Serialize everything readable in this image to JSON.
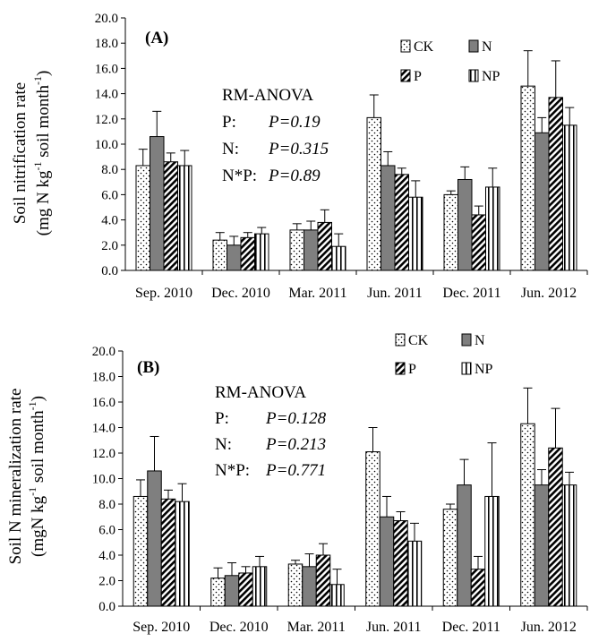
{
  "chart_data": [
    {
      "type": "bar",
      "panel_label": "(A)",
      "ylabel_line1": "Soil nitrification rate",
      "ylabel_line2": [
        "(mg N kg",
        "-1",
        " soil month",
        "-1",
        ")"
      ],
      "yticks": [
        "0.0",
        "2.0",
        "4.0",
        "6.0",
        "8.0",
        "10.0",
        "12.0",
        "14.0",
        "16.0",
        "18.0",
        "20.0"
      ],
      "ylim": [
        0,
        20
      ],
      "categories": [
        "Sep. 2010",
        "Dec. 2010",
        "Mar. 2011",
        "Jun. 2011",
        "Dec. 2011",
        "Jun. 2012"
      ],
      "series": [
        {
          "name": "CK",
          "pattern": "dots",
          "values": [
            8.3,
            2.4,
            3.2,
            12.1,
            6.0,
            14.6
          ],
          "errors": [
            1.3,
            0.6,
            0.5,
            1.8,
            0.3,
            2.8
          ]
        },
        {
          "name": "N",
          "pattern": "solid",
          "values": [
            10.6,
            2.0,
            3.2,
            8.3,
            7.2,
            10.9
          ],
          "errors": [
            2.0,
            0.7,
            0.7,
            1.1,
            1.0,
            1.2
          ]
        },
        {
          "name": "P",
          "pattern": "hatch",
          "values": [
            8.6,
            2.6,
            3.8,
            7.6,
            4.4,
            13.7
          ],
          "errors": [
            0.7,
            0.4,
            1.0,
            0.5,
            0.7,
            2.9
          ]
        },
        {
          "name": "NP",
          "pattern": "vlines",
          "values": [
            8.3,
            2.9,
            1.9,
            5.8,
            6.6,
            11.5
          ],
          "errors": [
            1.2,
            0.5,
            1.0,
            1.3,
            1.5,
            1.4
          ]
        }
      ],
      "anova": {
        "title": "RM-ANOVA",
        "rows": [
          {
            "factor": "P:",
            "stat": "P=0.19"
          },
          {
            "factor": "N:",
            "stat": "P=0.315"
          },
          {
            "factor": "N*P:",
            "stat": "P=0.89"
          }
        ]
      },
      "legend_position": "top-right",
      "grid": false
    },
    {
      "type": "bar",
      "panel_label": "(B)",
      "ylabel_line1": "Soil N mineralization rate",
      "ylabel_line2": [
        "(mgN kg",
        "-1",
        " soil month",
        "-1",
        ")"
      ],
      "yticks": [
        "0.0",
        "2.0",
        "4.0",
        "6.0",
        "8.0",
        "10.0",
        "12.0",
        "14.0",
        "16.0",
        "18.0",
        "20.0"
      ],
      "ylim": [
        0,
        20
      ],
      "categories": [
        "Sep. 2010",
        "Dec. 2010",
        "Mar. 2011",
        "Jun. 2011",
        "Dec. 2011",
        "Jun. 2012"
      ],
      "series": [
        {
          "name": "CK",
          "pattern": "dots",
          "values": [
            8.6,
            2.2,
            3.3,
            12.1,
            7.6,
            14.3
          ],
          "errors": [
            1.3,
            0.8,
            0.3,
            1.9,
            0.4,
            2.8
          ]
        },
        {
          "name": "N",
          "pattern": "solid",
          "values": [
            10.6,
            2.4,
            3.1,
            7.0,
            9.5,
            9.5
          ],
          "errors": [
            2.7,
            1.0,
            1.0,
            1.6,
            2.0,
            1.2
          ]
        },
        {
          "name": "P",
          "pattern": "hatch",
          "values": [
            8.4,
            2.6,
            4.0,
            6.7,
            2.9,
            12.4
          ],
          "errors": [
            0.7,
            0.5,
            0.9,
            0.7,
            1.0,
            3.1
          ]
        },
        {
          "name": "NP",
          "pattern": "vlines",
          "values": [
            8.2,
            3.1,
            1.7,
            5.1,
            8.6,
            9.5
          ],
          "errors": [
            1.4,
            0.8,
            1.2,
            1.4,
            4.2,
            1.0
          ]
        }
      ],
      "anova": {
        "title": "RM-ANOVA",
        "rows": [
          {
            "factor": "P:",
            "stat": "P=0.128"
          },
          {
            "factor": "N:",
            "stat": "P=0.213"
          },
          {
            "factor": "N*P:",
            "stat": "P=0.771"
          }
        ]
      },
      "legend_position": "top-right",
      "grid": false
    }
  ]
}
